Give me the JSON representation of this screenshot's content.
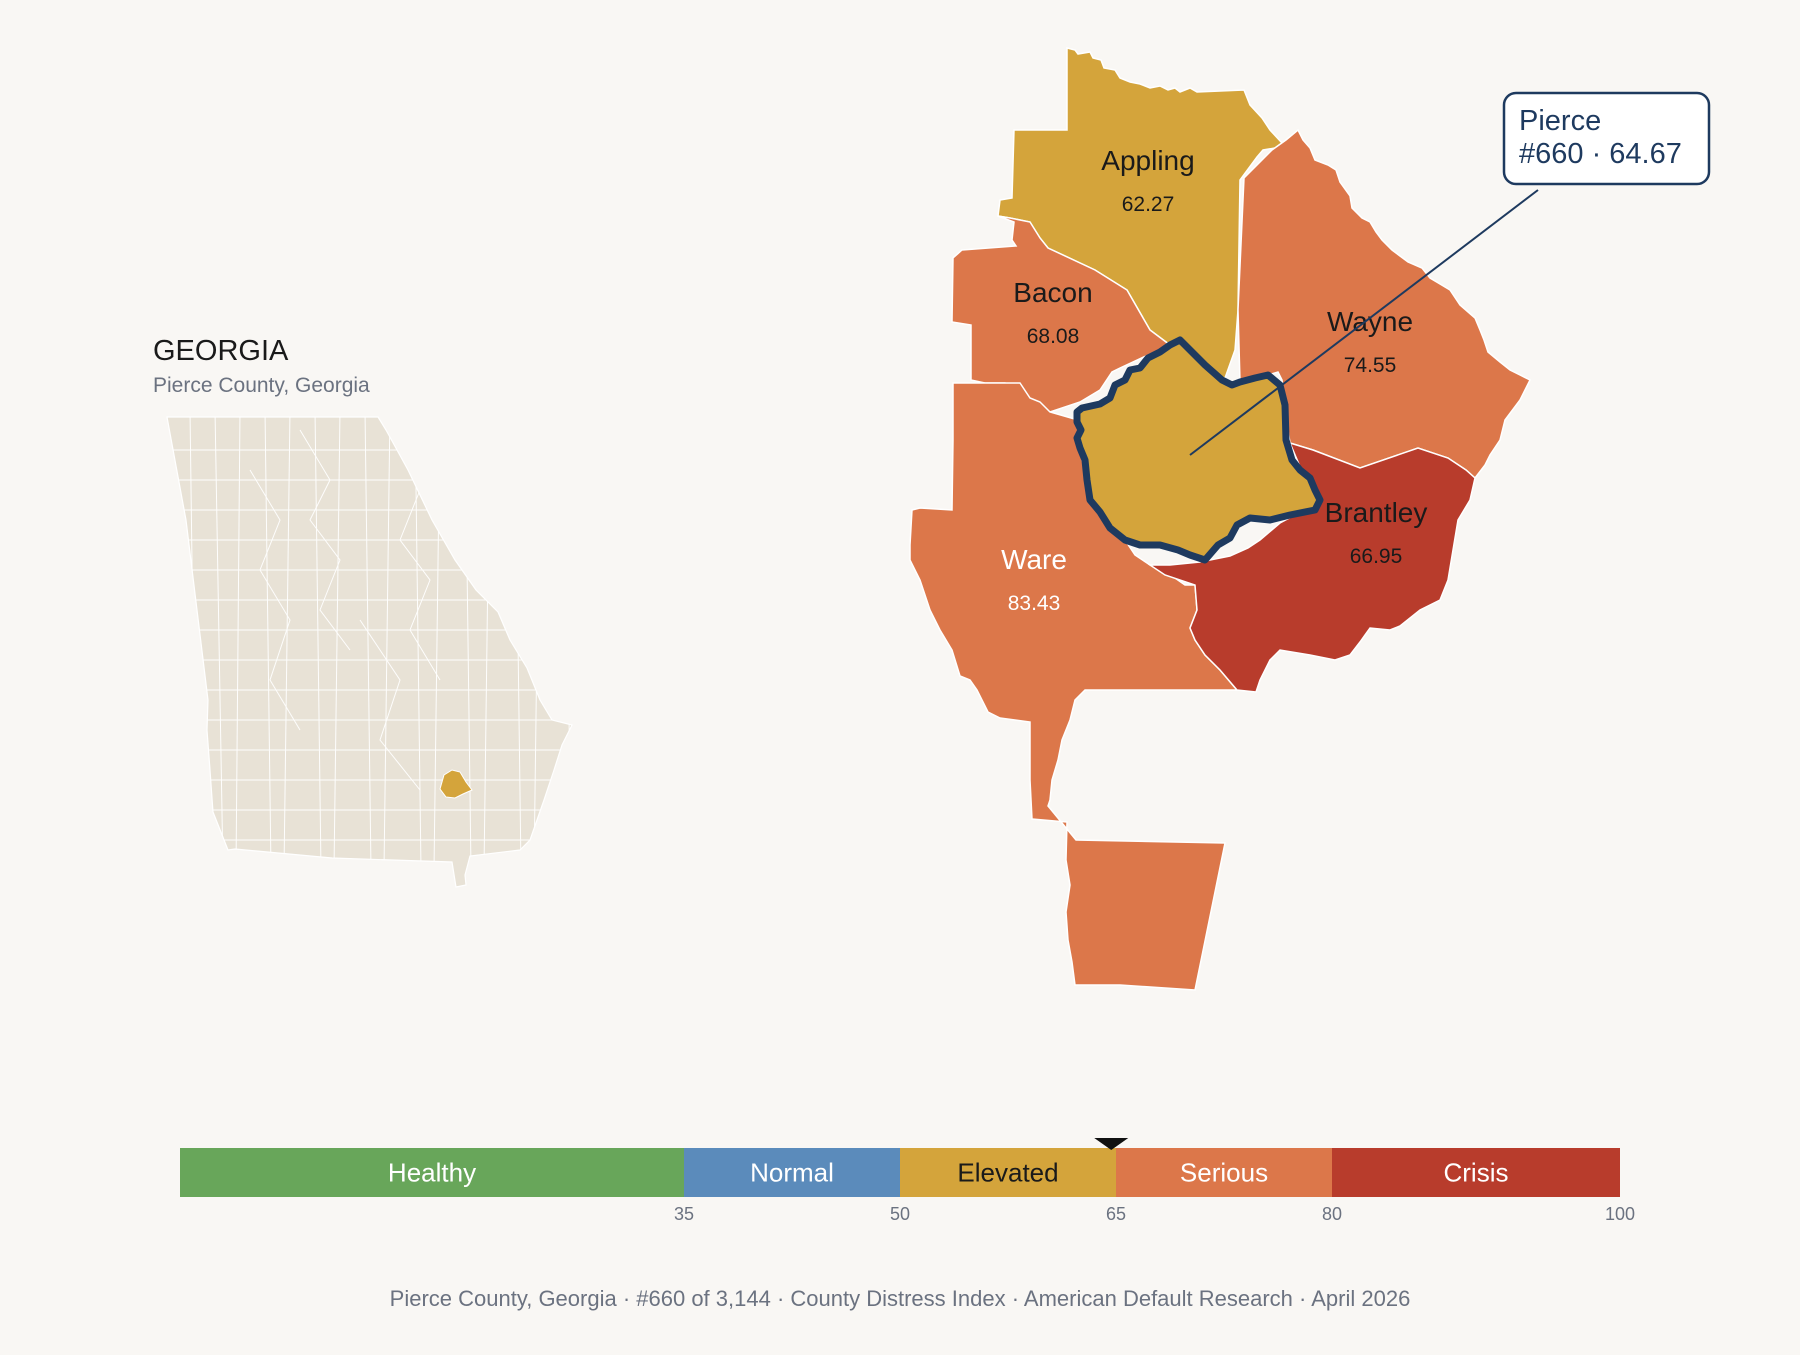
{
  "state_panel": {
    "state_name": "GEORGIA",
    "subtitle": "Pierce County, Georgia"
  },
  "callout": {
    "county": "Pierce",
    "detail": "#660 · 64.67"
  },
  "counties": [
    {
      "name": "Appling",
      "value": "62.27",
      "color": "#d4a43b",
      "text_color": "#1a1a1a"
    },
    {
      "name": "Bacon",
      "value": "68.08",
      "color": "#dc774a",
      "text_color": "#1a1a1a"
    },
    {
      "name": "Wayne",
      "value": "74.55",
      "color": "#dc774a",
      "text_color": "#1a1a1a"
    },
    {
      "name": "Brantley",
      "value": "66.95",
      "color": "#dc774a",
      "text_color": "#1a1a1a"
    },
    {
      "name": "Ware",
      "value": "83.43",
      "color": "#b83c2c",
      "text_color": "#ffffff"
    },
    {
      "name": "Pierce",
      "value": "64.67",
      "color": "#d4a43b",
      "text_color": "#1a1a1a"
    }
  ],
  "scale": {
    "min": 0,
    "max": 100,
    "marker_value": 64.67,
    "bands": [
      {
        "label": "Healthy",
        "from": 0,
        "to": 35,
        "color": "#68a65a",
        "text_color": "#ffffff"
      },
      {
        "label": "Normal",
        "from": 35,
        "to": 50,
        "color": "#5b8bbb",
        "text_color": "#ffffff"
      },
      {
        "label": "Elevated",
        "from": 50,
        "to": 65,
        "color": "#d4a43b",
        "text_color": "#1a1a1a"
      },
      {
        "label": "Serious",
        "from": 65,
        "to": 80,
        "color": "#dc774a",
        "text_color": "#ffffff"
      },
      {
        "label": "Crisis",
        "from": 80,
        "to": 100,
        "color": "#b83c2c",
        "text_color": "#ffffff"
      }
    ],
    "ticks": [
      "35",
      "50",
      "65",
      "80",
      "100"
    ]
  },
  "footer": "Pierce County, Georgia  ·  #660 of 3,144  ·  County Distress Index  ·  American Default Research  ·  April 2026",
  "colors": {
    "background": "#f9f7f4",
    "state_fill": "#e8e2d6",
    "highlight_outline": "#1e3a5f",
    "muted_text": "#6b7280"
  }
}
